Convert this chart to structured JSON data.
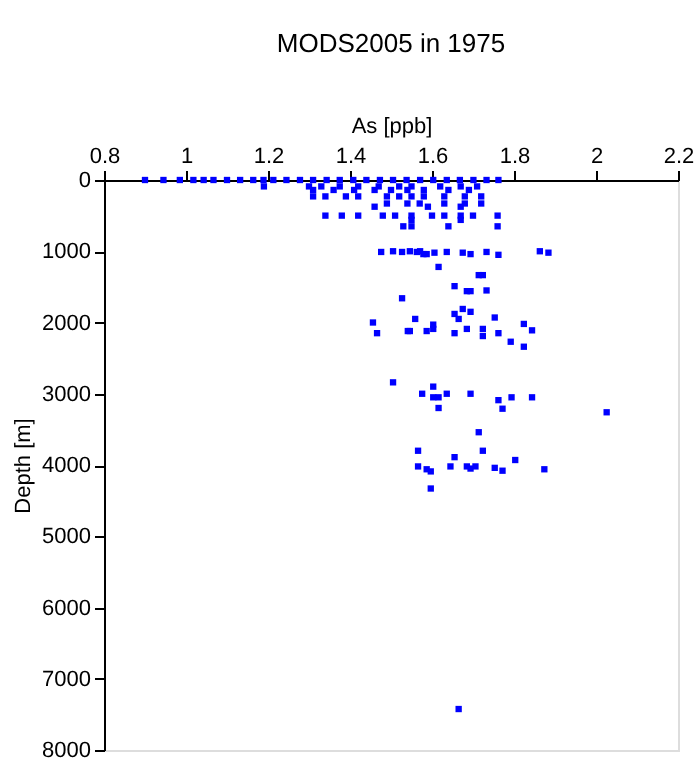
{
  "chart_data": {
    "type": "scatter",
    "title": "MODS2005 in 1975",
    "xlabel": "As [ppb]",
    "ylabel": "Depth [m]",
    "xlim": [
      0.8,
      2.2
    ],
    "xticks": [
      0.8,
      1,
      1.2,
      1.4,
      1.6,
      1.8,
      2,
      2.2
    ],
    "ylim": [
      8000,
      0
    ],
    "yticks": [
      0,
      1000,
      2000,
      3000,
      4000,
      5000,
      6000,
      7000,
      8000
    ],
    "grid": false,
    "marker": "square",
    "series": [
      {
        "color": "#0000ff",
        "x": [
          0.9,
          0.945,
          0.985,
          1.018,
          1.043,
          1.067,
          1.1,
          1.132,
          1.164,
          1.189,
          1.213,
          1.245,
          1.278,
          1.31,
          1.343,
          1.375,
          1.408,
          1.44,
          1.473,
          1.505,
          1.538,
          1.571,
          1.603,
          1.636,
          1.668,
          1.701,
          1.733,
          1.762,
          1.19,
          1.3,
          1.33,
          1.375,
          1.42,
          1.47,
          1.52,
          1.55,
          1.62,
          1.67,
          1.71,
          1.31,
          1.36,
          1.41,
          1.46,
          1.5,
          1.54,
          1.58,
          1.64,
          1.69,
          1.31,
          1.34,
          1.39,
          1.42,
          1.49,
          1.52,
          1.55,
          1.58,
          1.63,
          1.68,
          1.72,
          1.49,
          1.54,
          1.57,
          1.63,
          1.68,
          1.72,
          1.46,
          1.59,
          1.67,
          1.34,
          1.38,
          1.42,
          1.48,
          1.51,
          1.55,
          1.6,
          1.63,
          1.67,
          1.7,
          1.76,
          1.55,
          1.67,
          1.53,
          1.55,
          1.64,
          1.76,
          1.476,
          1.505,
          1.527,
          1.546,
          1.563,
          1.571,
          1.579,
          1.587,
          1.606,
          1.636,
          1.675,
          1.694,
          1.733,
          1.762,
          1.863,
          1.884,
          1.616,
          1.714,
          1.724,
          1.655,
          1.685,
          1.694,
          1.733,
          1.527,
          1.559,
          1.655,
          1.665,
          1.675,
          1.694,
          1.753,
          1.456,
          1.466,
          1.541,
          1.546,
          1.587,
          1.603,
          1.603,
          1.655,
          1.685,
          1.724,
          1.724,
          1.762,
          1.792,
          1.824,
          1.844,
          1.824,
          1.505,
          1.576,
          1.603,
          1.603,
          1.616,
          1.636,
          1.616,
          1.694,
          1.762,
          1.772,
          1.794,
          1.844,
          2.026,
          1.714,
          1.566,
          1.724,
          1.655,
          1.566,
          1.587,
          1.597,
          1.645,
          1.685,
          1.694,
          1.706,
          1.753,
          1.772,
          1.803,
          1.874,
          1.597,
          1.665
        ],
        "values": [
          0,
          0,
          0,
          0,
          0,
          0,
          0,
          0,
          0,
          0,
          0,
          0,
          0,
          0,
          0,
          0,
          0,
          0,
          0,
          0,
          0,
          0,
          0,
          0,
          0,
          0,
          0,
          0,
          90,
          90,
          90,
          90,
          90,
          90,
          90,
          90,
          90,
          90,
          90,
          140,
          140,
          140,
          140,
          140,
          140,
          140,
          140,
          140,
          230,
          230,
          230,
          230,
          230,
          230,
          230,
          230,
          230,
          230,
          230,
          330,
          330,
          330,
          330,
          330,
          330,
          375,
          375,
          375,
          500,
          500,
          500,
          500,
          500,
          500,
          500,
          500,
          500,
          500,
          500,
          560,
          560,
          650,
          650,
          650,
          650,
          1010,
          1000,
          1010,
          1000,
          1010,
          1000,
          1040,
          1040,
          1020,
          1010,
          1020,
          1040,
          1010,
          1050,
          1000,
          1020,
          1220,
          1335,
          1335,
          1490,
          1560,
          1560,
          1550,
          1660,
          1950,
          1880,
          1950,
          1810,
          1850,
          1930,
          2000,
          2150,
          2120,
          2120,
          2120,
          2030,
          2090,
          2150,
          2090,
          2090,
          2190,
          2150,
          2270,
          2020,
          2110,
          2340,
          2840,
          3000,
          2900,
          3050,
          3050,
          3000,
          3200,
          3000,
          3090,
          3210,
          3050,
          3050,
          3260,
          3540,
          3800,
          3800,
          3890,
          4020,
          4060,
          4090,
          4020,
          4020,
          4050,
          4020,
          4040,
          4080,
          3930,
          4060,
          4330,
          7425
        ]
      }
    ]
  }
}
